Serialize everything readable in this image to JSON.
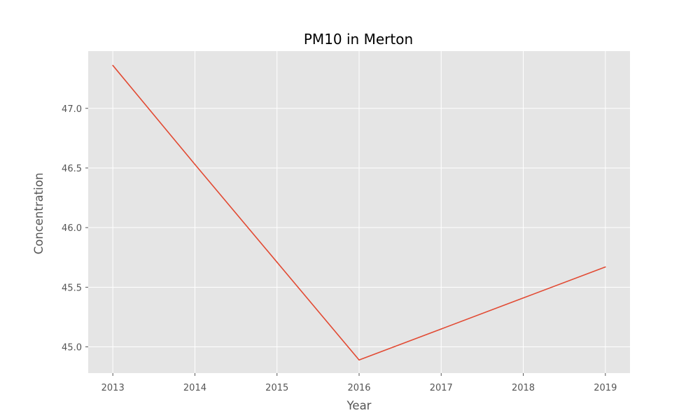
{
  "chart_data": {
    "type": "line",
    "title": "PM10 in Merton",
    "xlabel": "Year",
    "ylabel": "Concentration",
    "x": [
      2013,
      2014,
      2015,
      2016,
      2017,
      2018,
      2019
    ],
    "series": [
      {
        "values": [
          47.36,
          46.53,
          45.71,
          44.89,
          45.15,
          45.41,
          45.67
        ],
        "color": "#E24A33"
      }
    ],
    "xlim": [
      2012.7,
      2019.3
    ],
    "ylim": [
      44.78,
      47.48
    ],
    "x_ticks": [
      "2013",
      "2014",
      "2015",
      "2016",
      "2017",
      "2018",
      "2019"
    ],
    "y_ticks": [
      "45.0",
      "45.5",
      "46.0",
      "46.5",
      "47.0"
    ],
    "grid": true,
    "style": {
      "plot_background": "#E5E5E5",
      "grid_color": "#FFFFFF"
    }
  }
}
